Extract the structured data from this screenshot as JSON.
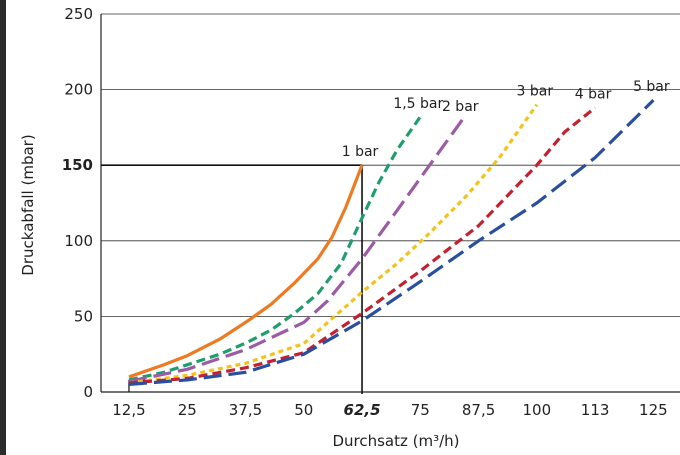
{
  "chart_data": {
    "type": "line",
    "xlabel": "Durchsatz (m³/h)",
    "ylabel": "Druckabfall (mbar)",
    "ylim": [
      0,
      250
    ],
    "yticks": [
      {
        "value": 0,
        "label": "0"
      },
      {
        "value": 50,
        "label": "50"
      },
      {
        "value": 100,
        "label": "100"
      },
      {
        "value": 150,
        "label": "150",
        "bold": true
      },
      {
        "value": 200,
        "label": "200"
      },
      {
        "value": 250,
        "label": "250"
      }
    ],
    "xticks": [
      {
        "value": 12.5,
        "label": "12,5"
      },
      {
        "value": 25,
        "label": "25"
      },
      {
        "value": 37.5,
        "label": "37,5"
      },
      {
        "value": 50,
        "label": "50"
      },
      {
        "value": 62.5,
        "label": "62,5",
        "bold": true
      },
      {
        "value": 75,
        "label": "75"
      },
      {
        "value": 87.5,
        "label": "87,5"
      },
      {
        "value": 100,
        "label": "100"
      },
      {
        "value": 112.5,
        "label": "113"
      },
      {
        "value": 125,
        "label": "125"
      }
    ],
    "xlim": [
      6.5,
      132
    ],
    "grid": "horizontal",
    "reference": {
      "x": 62.5,
      "y": 150
    },
    "series": [
      {
        "name": "1 bar",
        "color": "#f07a22",
        "style": "solid",
        "x": [
          12.5,
          20,
          25,
          32,
          38,
          43,
          48,
          53,
          56,
          59,
          62.5
        ],
        "y": [
          10,
          18,
          24,
          35,
          47,
          58,
          72,
          88,
          102,
          122,
          150
        ]
      },
      {
        "name": "1,5 bar",
        "color": "#1f9e6b",
        "style": "dash",
        "x": [
          12.5,
          20,
          25,
          32,
          38,
          43,
          48,
          53,
          58,
          62.5,
          66,
          70,
          75
        ],
        "y": [
          8,
          13,
          18,
          25,
          33,
          41,
          52,
          65,
          85,
          115,
          138,
          160,
          182
        ]
      },
      {
        "name": "2 bar",
        "color": "#9b5ba5",
        "style": "longdash",
        "x": [
          12.5,
          25,
          37.5,
          50,
          55,
          62.5,
          70,
          77,
          84
        ],
        "y": [
          7,
          15,
          28,
          46,
          60,
          88,
          120,
          150,
          180
        ]
      },
      {
        "name": "3 bar",
        "color": "#f5c219",
        "style": "dot",
        "x": [
          12.5,
          25,
          37.5,
          50,
          62.5,
          70,
          77,
          85,
          92,
          100
        ],
        "y": [
          6,
          11,
          19,
          32,
          66,
          85,
          105,
          130,
          155,
          190
        ]
      },
      {
        "name": "4 bar",
        "color": "#c6202f",
        "style": "dash",
        "x": [
          12.5,
          25,
          37.5,
          50,
          62.5,
          75,
          87.5,
          100,
          106,
          112.5
        ],
        "y": [
          6,
          9,
          16,
          26,
          52,
          80,
          110,
          150,
          172,
          188
        ]
      },
      {
        "name": "5 bar",
        "color": "#2a4f9e",
        "style": "longdash",
        "x": [
          12.5,
          25,
          37.5,
          50,
          62.5,
          75,
          87.5,
          100,
          112.5,
          125
        ],
        "y": [
          5,
          8,
          13,
          25,
          47,
          73,
          100,
          125,
          155,
          193
        ]
      }
    ]
  }
}
